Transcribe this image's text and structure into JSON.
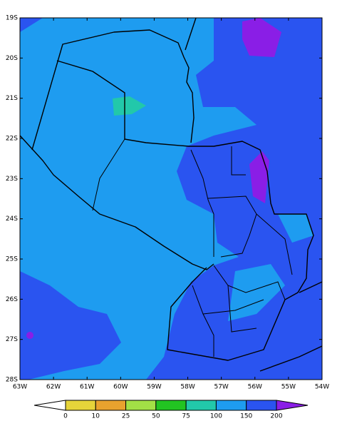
{
  "map": {
    "lat_labels": [
      "19S",
      "20S",
      "21S",
      "22S",
      "23S",
      "24S",
      "25S",
      "26S",
      "27S",
      "28S"
    ],
    "lon_labels": [
      "63W",
      "62W",
      "61W",
      "60W",
      "59W",
      "58W",
      "57W",
      "56W",
      "55W",
      "54W"
    ]
  },
  "colorbar": {
    "labels": [
      0,
      10,
      25,
      50,
      75,
      100,
      150,
      200
    ],
    "under_color": "#ffffff",
    "colors": [
      "#e6d43a",
      "#e8a22e",
      "#a2e046",
      "#22c422",
      "#22c8aa",
      "#1e9cf0",
      "#2a54f0"
    ],
    "over_color": "#8a1ee6"
  }
}
